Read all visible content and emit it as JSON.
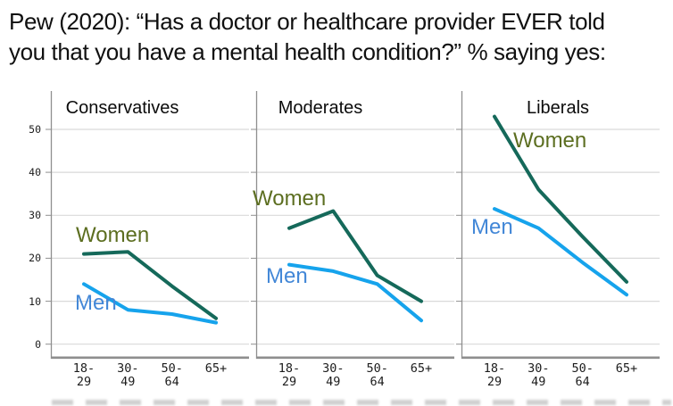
{
  "header": {
    "title_line1": "Pew (2020): “Has a doctor or healthcare provider EVER told",
    "title_line2": "you that you have a mental health condition?” % saying yes:"
  },
  "chart_data": {
    "type": "line",
    "title": "Pew (2020): “Has a doctor or healthcare provider EVER told you that you have a mental health condition?” % saying yes:",
    "categories": [
      "18-29",
      "30-49",
      "50-64",
      "65+"
    ],
    "yticks": [
      0,
      10,
      20,
      30,
      40,
      50
    ],
    "ylim": [
      0,
      59
    ],
    "grid": true,
    "legend_position": "inline-labels",
    "panels": [
      {
        "title": "Conservatives",
        "series": [
          {
            "name": "Women",
            "values": [
              21,
              21.5,
              13.5,
              6
            ]
          },
          {
            "name": "Men",
            "values": [
              14,
              8,
              7,
              5
            ]
          }
        ]
      },
      {
        "title": "Moderates",
        "series": [
          {
            "name": "Women",
            "values": [
              27,
              31,
              16,
              10
            ]
          },
          {
            "name": "Men",
            "values": [
              18.5,
              17,
              14,
              5.5
            ]
          }
        ]
      },
      {
        "title": "Liberals",
        "series": [
          {
            "name": "Women",
            "values": [
              53,
              36,
              25,
              14.5
            ]
          },
          {
            "name": "Men",
            "values": [
              31.5,
              27,
              19,
              11.5
            ]
          }
        ]
      }
    ],
    "colors": {
      "women_line": "#15695a",
      "men_line": "#16a3ec",
      "women_label": "#5c6e20",
      "men_label": "#4287d7",
      "grid": "#d9d9d9",
      "axis": "#8f8f8f",
      "bottom_axis": "#8e8e8e",
      "tick_text": "#1c1c1c"
    }
  }
}
